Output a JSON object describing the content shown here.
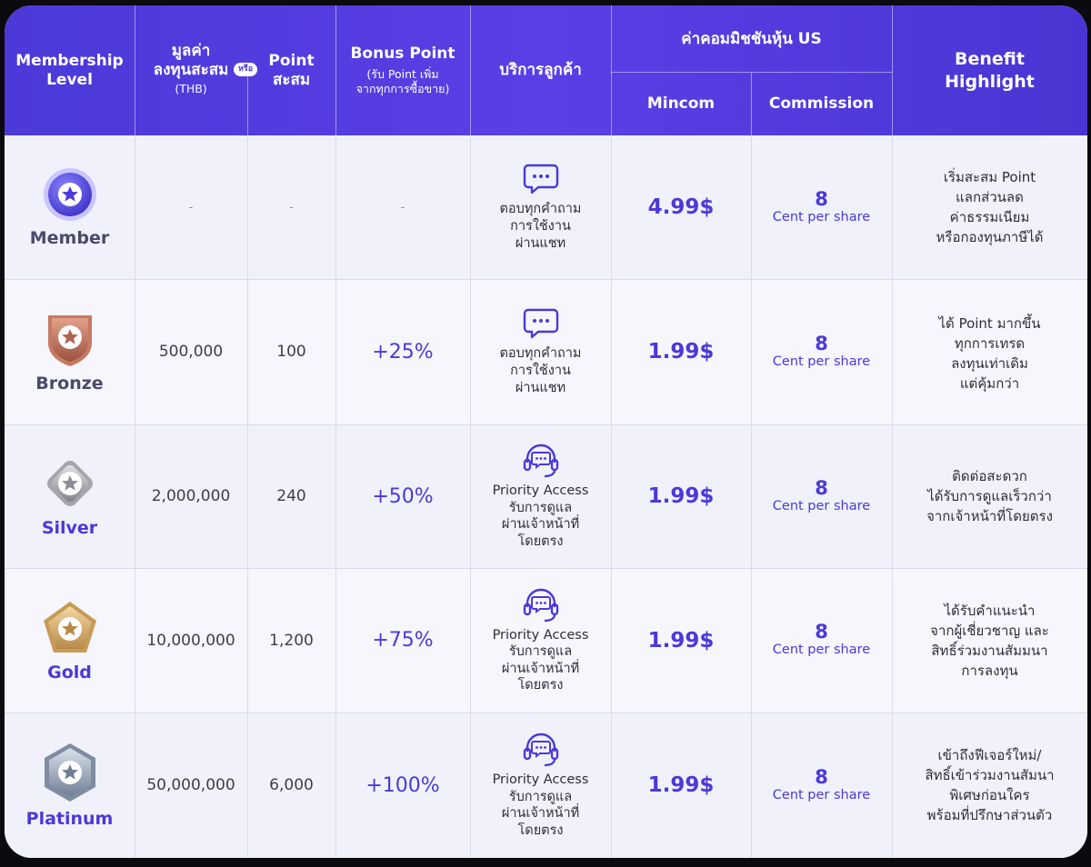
{
  "header": {
    "membership_level": [
      "Membership",
      "Level"
    ],
    "investment_value": [
      "มูลค่า",
      "ลงทุนสะสม"
    ],
    "or_badge": "หรือ",
    "currency": "(THB)",
    "points": [
      "Point",
      "สะสม"
    ],
    "bonus_point": "Bonus Point",
    "bonus_point_sub": [
      "(รับ Point เพิ่ม",
      "จากทุกการซื้อขาย)"
    ],
    "customer_service": "บริการลูกค้า",
    "us_commission": "ค่าคอมมิชชันหุ้น US",
    "mincom": "Mincom",
    "commission": "Commission",
    "benefit": [
      "Benefit",
      "Highlight"
    ]
  },
  "rows": [
    {
      "level": "Member",
      "level_color": "#4a4a6a",
      "icon": "star-circle-icon",
      "investment": "-",
      "points": "-",
      "bonus": "-",
      "service_icon": "chat-bubble-icon",
      "service": [
        "ตอบทุกคำถาม",
        "การใช้งาน",
        "ผ่านแชท"
      ],
      "mincom": "4.99$",
      "commission_value": "8",
      "commission_unit": "Cent per share",
      "benefit": [
        "เริ่มสะสม Point",
        "แลกส่วนลด",
        "ค่าธรรมเนียม",
        "หรือกองทุนภาษีได้"
      ]
    },
    {
      "level": "Bronze",
      "level_color": "#4a4a6a",
      "icon": "bronze-shield-icon",
      "investment": "500,000",
      "points": "100",
      "bonus": "+25%",
      "service_icon": "chat-bubble-icon",
      "service": [
        "ตอบทุกคำถาม",
        "การใช้งาน",
        "ผ่านแชท"
      ],
      "mincom": "1.99$",
      "commission_value": "8",
      "commission_unit": "Cent per share",
      "benefit": [
        "ได้ Point มากขึ้น",
        "ทุกการเทรด",
        "ลงทุนเท่าเดิม",
        "แต่คุ้มกว่า"
      ]
    },
    {
      "level": "Silver",
      "level_color": "#4b39d8",
      "icon": "silver-diamond-icon",
      "investment": "2,000,000",
      "points": "240",
      "bonus": "+50%",
      "service_icon": "headset-icon",
      "service": [
        "Priority Access",
        "รับการดูแล",
        "ผ่านเจ้าหน้าที่",
        "โดยตรง"
      ],
      "mincom": "1.99$",
      "commission_value": "8",
      "commission_unit": "Cent per share",
      "benefit": [
        "ติดต่อสะดวก",
        "ได้รับการดูแลเร็วกว่า",
        "จากเจ้าหน้าที่โดยตรง"
      ]
    },
    {
      "level": "Gold",
      "level_color": "#4b39d8",
      "icon": "gold-pentagon-icon",
      "investment": "10,000,000",
      "points": "1,200",
      "bonus": "+75%",
      "service_icon": "headset-icon",
      "service": [
        "Priority Access",
        "รับการดูแล",
        "ผ่านเจ้าหน้าที่",
        "โดยตรง"
      ],
      "mincom": "1.99$",
      "commission_value": "8",
      "commission_unit": "Cent per share",
      "benefit": [
        "ได้รับคำแนะนำ",
        "จากผู้เชี่ยวชาญ และ",
        "สิทธิ์ร่วมงานสัมมนา",
        "การลงทุน"
      ]
    },
    {
      "level": "Platinum",
      "level_color": "#4b39d8",
      "icon": "platinum-hexagon-icon",
      "investment": "50,000,000",
      "points": "6,000",
      "bonus": "+100%",
      "service_icon": "headset-icon",
      "service": [
        "Priority Access",
        "รับการดูแล",
        "ผ่านเจ้าหน้าที่",
        "โดยตรง"
      ],
      "mincom": "1.99$",
      "commission_value": "8",
      "commission_unit": "Cent per share",
      "benefit": [
        "เข้าถึงฟีเจอร์ใหม่/",
        "สิทธิ์เข้าร่วมงานสัมนา",
        "พิเศษก่อนใคร",
        "พร้อมที่ปรึกษาส่วนตัว"
      ]
    }
  ],
  "colors": {
    "header_bg": "#4b39d8",
    "accent": "#4b39d8",
    "body_text": "#2e2e3a"
  }
}
